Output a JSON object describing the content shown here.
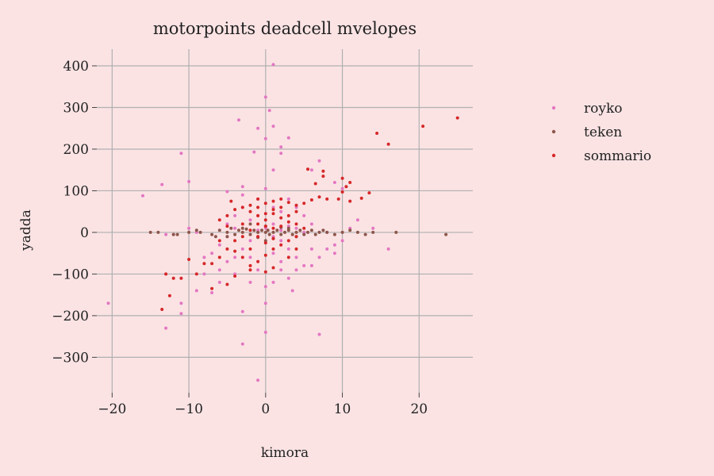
{
  "chart_data": {
    "type": "scatter",
    "title": "motorpoints deadcell mvelopes",
    "xlabel": "kimora",
    "ylabel": "yadda",
    "xlim": [
      -22,
      27
    ],
    "ylim": [
      -385,
      440
    ],
    "xticks": [
      -20,
      -10,
      0,
      10,
      20
    ],
    "yticks": [
      -300,
      -200,
      -100,
      0,
      100,
      200,
      300,
      400
    ],
    "grid": true,
    "legend_position": "right",
    "series": [
      {
        "name": "royko",
        "color": "#e377c2",
        "points": [
          [
            1,
            403
          ],
          [
            0,
            325
          ],
          [
            0.5,
            293
          ],
          [
            -3.5,
            270
          ],
          [
            1,
            255
          ],
          [
            -1,
            250
          ],
          [
            3,
            227
          ],
          [
            0,
            225
          ],
          [
            -1.5,
            193
          ],
          [
            2,
            205
          ],
          [
            -11,
            190
          ],
          [
            2,
            190
          ],
          [
            7,
            172
          ],
          [
            -3,
            110
          ],
          [
            -10,
            122
          ],
          [
            -13.5,
            115
          ],
          [
            -16,
            88
          ],
          [
            -5,
            98
          ],
          [
            0,
            105
          ],
          [
            1,
            150
          ],
          [
            6,
            150
          ],
          [
            9,
            120
          ],
          [
            10,
            105
          ],
          [
            12,
            30
          ],
          [
            11,
            10
          ],
          [
            14,
            10
          ],
          [
            16,
            -40
          ],
          [
            9,
            -30
          ],
          [
            8,
            -40
          ],
          [
            9,
            -50
          ],
          [
            7,
            -60
          ],
          [
            6,
            -80
          ],
          [
            4,
            -90
          ],
          [
            3,
            -110
          ],
          [
            3.5,
            -140
          ],
          [
            7,
            -245
          ],
          [
            0,
            -170
          ],
          [
            0,
            -240
          ],
          [
            -1,
            -355
          ],
          [
            -3,
            -268
          ],
          [
            -3,
            -190
          ],
          [
            -7,
            -145
          ],
          [
            -9,
            -140
          ],
          [
            -11,
            -195
          ],
          [
            -11,
            -170
          ],
          [
            -13,
            -230
          ],
          [
            -20.5,
            -170
          ],
          [
            -13,
            -100
          ],
          [
            -8,
            -100
          ],
          [
            -6,
            -90
          ],
          [
            -5,
            -70
          ],
          [
            -4,
            -60
          ],
          [
            -3,
            -40
          ],
          [
            -2,
            -20
          ],
          [
            -1,
            -10
          ],
          [
            -12,
            -5
          ],
          [
            -13,
            -5
          ],
          [
            -10,
            10
          ],
          [
            -9,
            0
          ],
          [
            -2,
            30
          ],
          [
            -1,
            40
          ],
          [
            1,
            20
          ],
          [
            2,
            50
          ],
          [
            3,
            80
          ],
          [
            4,
            60
          ],
          [
            5,
            40
          ],
          [
            6,
            20
          ],
          [
            -4,
            10
          ],
          [
            -5,
            -10
          ],
          [
            -6,
            -30
          ],
          [
            -7,
            -50
          ],
          [
            2,
            -20
          ],
          [
            3,
            -40
          ],
          [
            4,
            -60
          ],
          [
            5,
            -80
          ],
          [
            -2,
            -60
          ],
          [
            -1,
            -90
          ],
          [
            1,
            -50
          ],
          [
            2,
            -70
          ],
          [
            1,
            60
          ],
          [
            -1,
            80
          ],
          [
            -3,
            60
          ],
          [
            -4,
            40
          ],
          [
            0,
            -130
          ],
          [
            1,
            -120
          ],
          [
            -2,
            -120
          ],
          [
            4,
            10
          ],
          [
            5,
            0
          ],
          [
            -5,
            20
          ],
          [
            0,
            10
          ],
          [
            1,
            -10
          ],
          [
            -1,
            5
          ],
          [
            2,
            5
          ],
          [
            3,
            15
          ],
          [
            -2,
            -5
          ],
          [
            -4,
            -100
          ],
          [
            6,
            -40
          ],
          [
            8,
            0
          ],
          [
            10,
            -20
          ],
          [
            -8,
            -60
          ],
          [
            -6,
            -120
          ],
          [
            2,
            -90
          ],
          [
            -3,
            90
          ]
        ]
      },
      {
        "name": "teken",
        "color": "#8c564b",
        "points": [
          [
            -15,
            0
          ],
          [
            -14,
            0
          ],
          [
            -12,
            -5
          ],
          [
            -11.5,
            -5
          ],
          [
            -9,
            5
          ],
          [
            -8.5,
            0
          ],
          [
            -7,
            -5
          ],
          [
            -6,
            5
          ],
          [
            -5,
            0
          ],
          [
            -4.5,
            10
          ],
          [
            -4,
            -5
          ],
          [
            -3.5,
            5
          ],
          [
            -3,
            0
          ],
          [
            -2.5,
            8
          ],
          [
            -2,
            -5
          ],
          [
            -1.5,
            5
          ],
          [
            -1,
            0
          ],
          [
            -0.5,
            5
          ],
          [
            0,
            0
          ],
          [
            0.3,
            5
          ],
          [
            0.5,
            -5
          ],
          [
            1,
            0
          ],
          [
            1.5,
            5
          ],
          [
            2,
            -5
          ],
          [
            2.5,
            0
          ],
          [
            3,
            5
          ],
          [
            3.5,
            -5
          ],
          [
            4,
            0
          ],
          [
            4.5,
            5
          ],
          [
            5,
            -5
          ],
          [
            5.5,
            0
          ],
          [
            6,
            5
          ],
          [
            6.5,
            -5
          ],
          [
            7,
            0
          ],
          [
            7.5,
            5
          ],
          [
            8,
            0
          ],
          [
            9,
            -5
          ],
          [
            10,
            0
          ],
          [
            11,
            5
          ],
          [
            12,
            0
          ],
          [
            13,
            -5
          ],
          [
            14,
            0
          ],
          [
            17,
            0
          ],
          [
            23.5,
            -5
          ],
          [
            -10,
            0
          ],
          [
            -6.5,
            -10
          ],
          [
            -3,
            10
          ],
          [
            0,
            15
          ],
          [
            1,
            -15
          ],
          [
            3,
            10
          ],
          [
            -1,
            -12
          ],
          [
            2,
            12
          ],
          [
            0,
            -20
          ],
          [
            -2,
            20
          ],
          [
            4,
            -10
          ],
          [
            -5,
            -10
          ]
        ]
      },
      {
        "name": "sommario",
        "color": "#d62728",
        "points": [
          [
            25,
            275
          ],
          [
            20.5,
            255
          ],
          [
            16,
            212
          ],
          [
            14.5,
            238
          ],
          [
            7.5,
            147
          ],
          [
            7.5,
            135
          ],
          [
            5.5,
            152
          ],
          [
            6.5,
            117
          ],
          [
            9.5,
            80
          ],
          [
            10,
            97
          ],
          [
            10,
            130
          ],
          [
            10.5,
            110
          ],
          [
            11,
            120
          ],
          [
            11,
            75
          ],
          [
            12.5,
            82
          ],
          [
            13.5,
            95
          ],
          [
            8,
            80
          ],
          [
            7,
            85
          ],
          [
            6,
            78
          ],
          [
            5,
            70
          ],
          [
            4,
            65
          ],
          [
            3,
            72
          ],
          [
            2,
            60
          ],
          [
            1,
            55
          ],
          [
            0,
            70
          ],
          [
            -1,
            80
          ],
          [
            -2,
            65
          ],
          [
            -3,
            60
          ],
          [
            -4,
            55
          ],
          [
            -5,
            40
          ],
          [
            -6,
            30
          ],
          [
            -4.5,
            75
          ],
          [
            -2,
            50
          ],
          [
            -1,
            40
          ],
          [
            0,
            30
          ],
          [
            1,
            45
          ],
          [
            2,
            35
          ],
          [
            3,
            25
          ],
          [
            4,
            20
          ],
          [
            5,
            10
          ],
          [
            -1,
            20
          ],
          [
            0,
            15
          ],
          [
            1,
            10
          ],
          [
            -2,
            5
          ],
          [
            -3,
            -10
          ],
          [
            -4,
            -20
          ],
          [
            -5,
            -40
          ],
          [
            -6,
            -60
          ],
          [
            -7,
            -75
          ],
          [
            -8,
            -75
          ],
          [
            -9,
            -100
          ],
          [
            -10,
            -65
          ],
          [
            -13,
            -100
          ],
          [
            -12,
            -110
          ],
          [
            -11,
            -110
          ],
          [
            -13.5,
            -185
          ],
          [
            -12.5,
            -152
          ],
          [
            -7,
            -135
          ],
          [
            -5,
            -125
          ],
          [
            -4,
            -105
          ],
          [
            -2,
            -90
          ],
          [
            -1,
            -70
          ],
          [
            0,
            -55
          ],
          [
            1,
            -40
          ],
          [
            2,
            -30
          ],
          [
            3,
            -20
          ],
          [
            4,
            -10
          ],
          [
            -3,
            -60
          ],
          [
            -2,
            -40
          ],
          [
            0,
            -25
          ],
          [
            1,
            -15
          ],
          [
            -1,
            -10
          ],
          [
            2,
            15
          ],
          [
            3,
            40
          ],
          [
            4,
            50
          ],
          [
            1,
            75
          ],
          [
            -1,
            60
          ],
          [
            0,
            45
          ],
          [
            2,
            80
          ],
          [
            -3,
            20
          ],
          [
            -5,
            15
          ],
          [
            -6,
            -20
          ],
          [
            -4,
            -45
          ],
          [
            -2,
            -80
          ],
          [
            0,
            -95
          ],
          [
            1,
            -85
          ],
          [
            3,
            -60
          ],
          [
            4,
            -40
          ]
        ]
      }
    ]
  }
}
